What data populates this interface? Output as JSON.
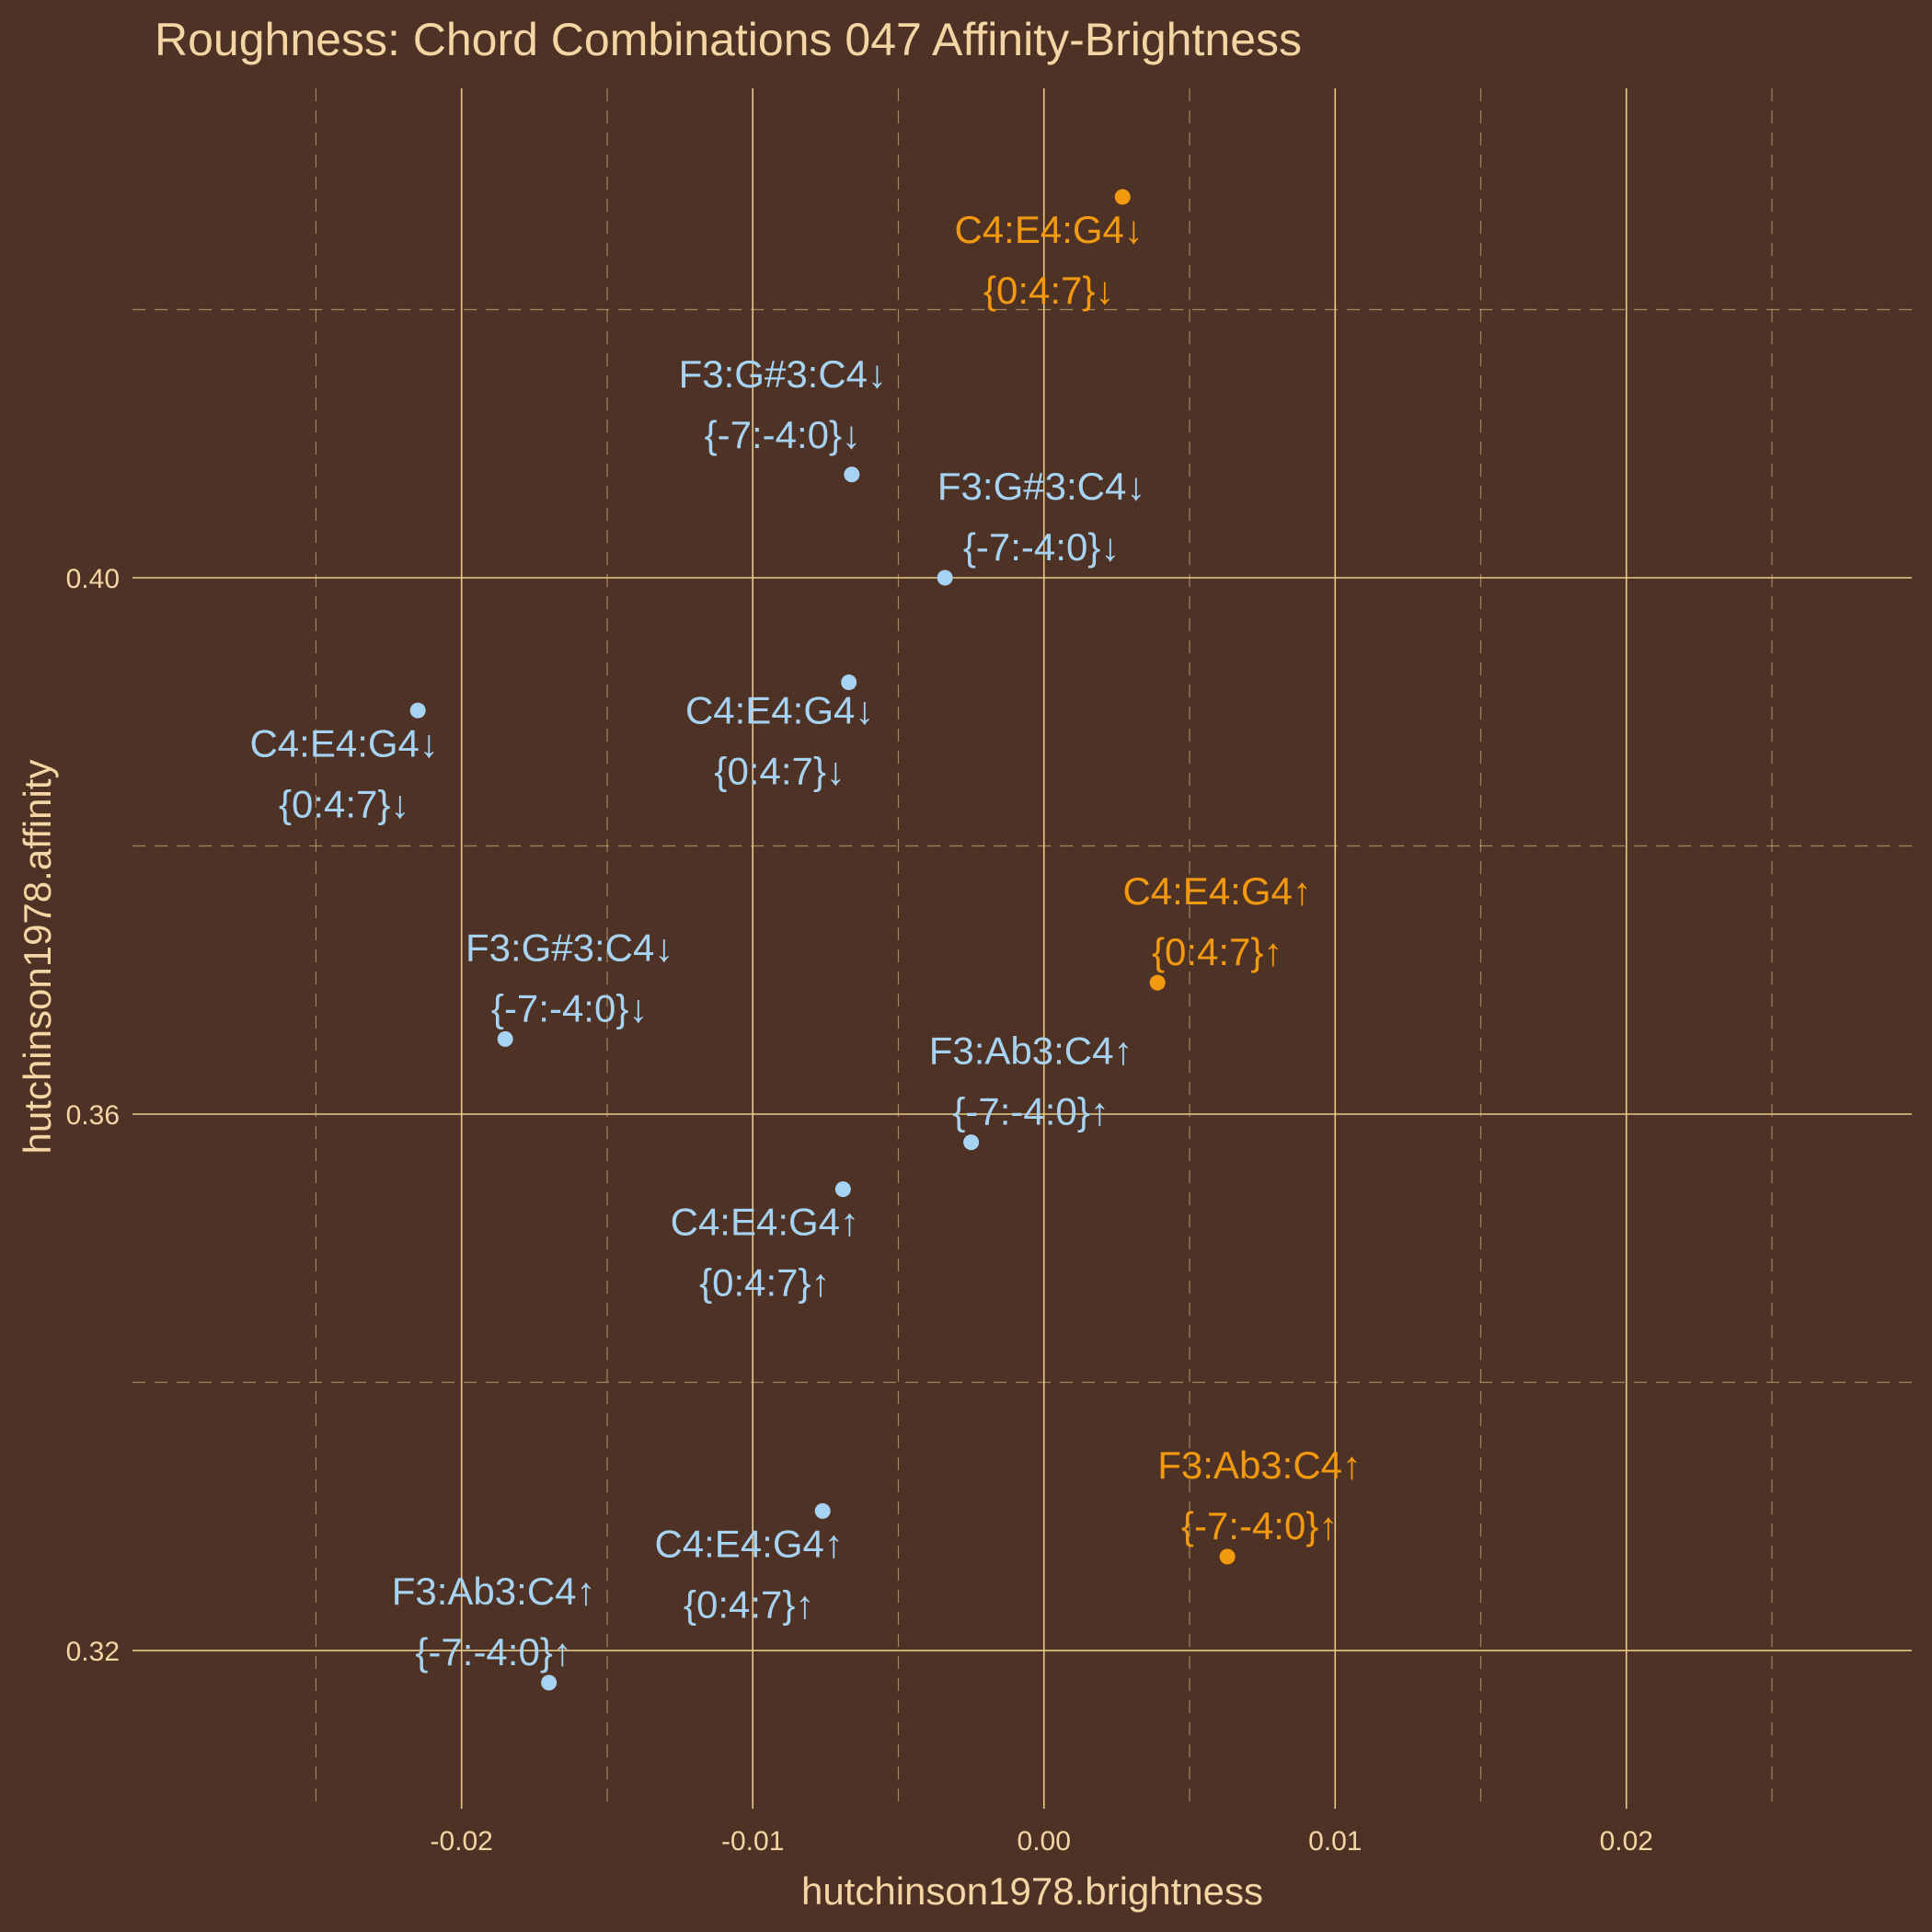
{
  "colors": {
    "background": "#4f3226",
    "grid": "#e8c98a",
    "text": "#f3d6a4",
    "major_chord": "#f3990f",
    "minor_chord": "#a6d3f2"
  },
  "chart_data": {
    "type": "scatter",
    "title": "Roughness: Chord Combinations 047 Affinity-Brightness",
    "xlabel": "hutchinson1978.brightness",
    "ylabel": "hutchinson1978.affinity",
    "xlim": [
      -0.0313,
      0.0298
    ],
    "ylim": [
      0.3082,
      0.4365
    ],
    "x_ticks": [
      "-0.02",
      "-0.01",
      "0.00",
      "0.01",
      "0.02"
    ],
    "x_tick_values": [
      -0.02,
      -0.01,
      0.0,
      0.01,
      0.02
    ],
    "y_ticks": [
      "0.32",
      "0.36",
      "0.40"
    ],
    "y_tick_values": [
      0.32,
      0.36,
      0.4
    ],
    "grid": true,
    "points": [
      {
        "x": 0.0027,
        "y": 0.4284,
        "group": "major_chord",
        "line1": "C4:E4:G4↓",
        "line2": "{0:4:7}↓"
      },
      {
        "x": -0.0066,
        "y": 0.4077,
        "group": "minor_chord",
        "line1": "F3:G#3:C4↓",
        "line2": "{-7:-4:0}↓"
      },
      {
        "x": -0.0034,
        "y": 0.4,
        "group": "minor_chord",
        "line1": "F3:G#3:C4↓",
        "line2": "{-7:-4:0}↓"
      },
      {
        "x": -0.0067,
        "y": 0.3922,
        "group": "minor_chord",
        "line1": "C4:E4:G4↓",
        "line2": "{0:4:7}↓"
      },
      {
        "x": -0.0215,
        "y": 0.3901,
        "group": "minor_chord",
        "line1": "C4:E4:G4↓",
        "line2": "{0:4:7}↓"
      },
      {
        "x": 0.0039,
        "y": 0.3698,
        "group": "major_chord",
        "line1": "C4:E4:G4↑",
        "line2": "{0:4:7}↑"
      },
      {
        "x": -0.0185,
        "y": 0.3656,
        "group": "minor_chord",
        "line1": "F3:G#3:C4↓",
        "line2": "{-7:-4:0}↓"
      },
      {
        "x": -0.0025,
        "y": 0.3579,
        "group": "minor_chord",
        "line1": "F3:Ab3:C4↑",
        "line2": "{-7:-4:0}↑"
      },
      {
        "x": -0.0069,
        "y": 0.3544,
        "group": "minor_chord",
        "line1": "C4:E4:G4↑",
        "line2": "{0:4:7}↑"
      },
      {
        "x": -0.0076,
        "y": 0.3304,
        "group": "minor_chord",
        "line1": "C4:E4:G4↑",
        "line2": "{0:4:7}↑"
      },
      {
        "x": 0.0063,
        "y": 0.327,
        "group": "major_chord",
        "line1": "F3:Ab3:C4↑",
        "line2": "{-7:-4:0}↑"
      },
      {
        "x": -0.017,
        "y": 0.3176,
        "group": "minor_chord",
        "line1": "F3:Ab3:C4↑",
        "line2": "{-7:-4:0}↑"
      }
    ]
  }
}
